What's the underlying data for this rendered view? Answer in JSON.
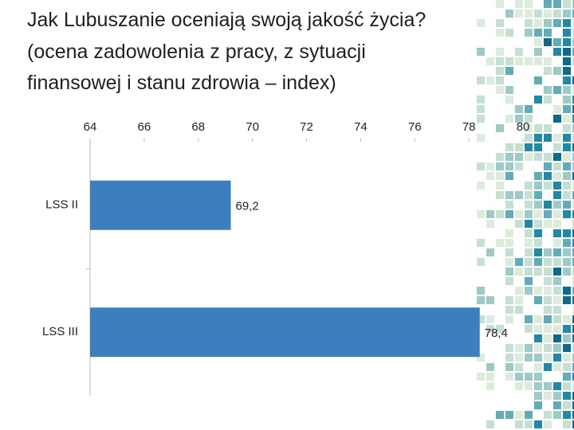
{
  "chart_data": {
    "type": "bar",
    "orientation": "horizontal",
    "title": [
      "Jak Lubuszanie oceniają swoją jakość życia?",
      "(ocena zadowolenia z pracy, z sytuacji",
      "finansowej i stanu zdrowia – index)"
    ],
    "categories": [
      "LSS II",
      "LSS III"
    ],
    "values": [
      69.2,
      78.4
    ],
    "value_labels": [
      "69,2",
      "78,4"
    ],
    "color": "#3b7fbf",
    "xlim": [
      64,
      81
    ],
    "xticks": [
      64,
      66,
      68,
      70,
      72,
      74,
      76,
      78,
      80
    ],
    "grid": false
  }
}
